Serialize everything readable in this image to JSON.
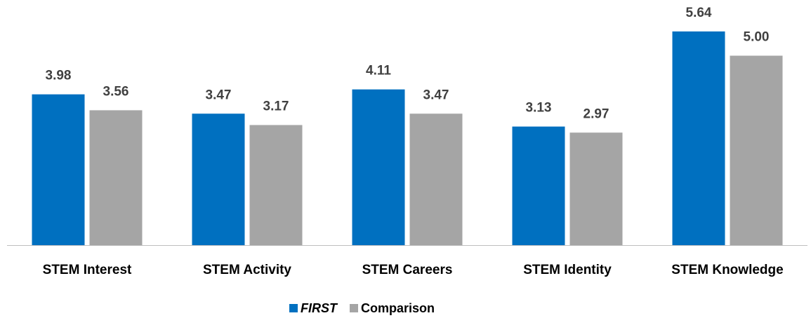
{
  "chart_data": {
    "type": "bar",
    "categories": [
      "STEM Interest",
      "STEM Activity",
      "STEM Careers",
      "STEM Identity",
      "STEM Knowledge"
    ],
    "series": [
      {
        "name": "FIRST",
        "color": "#0070c0",
        "values": [
          3.98,
          3.47,
          4.11,
          3.13,
          5.64
        ],
        "value_labels": [
          "3.98",
          "3.47",
          "4.11",
          "3.13",
          "5.64"
        ]
      },
      {
        "name": "Comparison",
        "color": "#a5a5a5",
        "values": [
          3.56,
          3.17,
          3.47,
          2.97,
          5.0
        ],
        "value_labels": [
          "3.56",
          "3.17",
          "3.47",
          "2.97",
          "5.00"
        ]
      }
    ],
    "legend": "bottom"
  }
}
